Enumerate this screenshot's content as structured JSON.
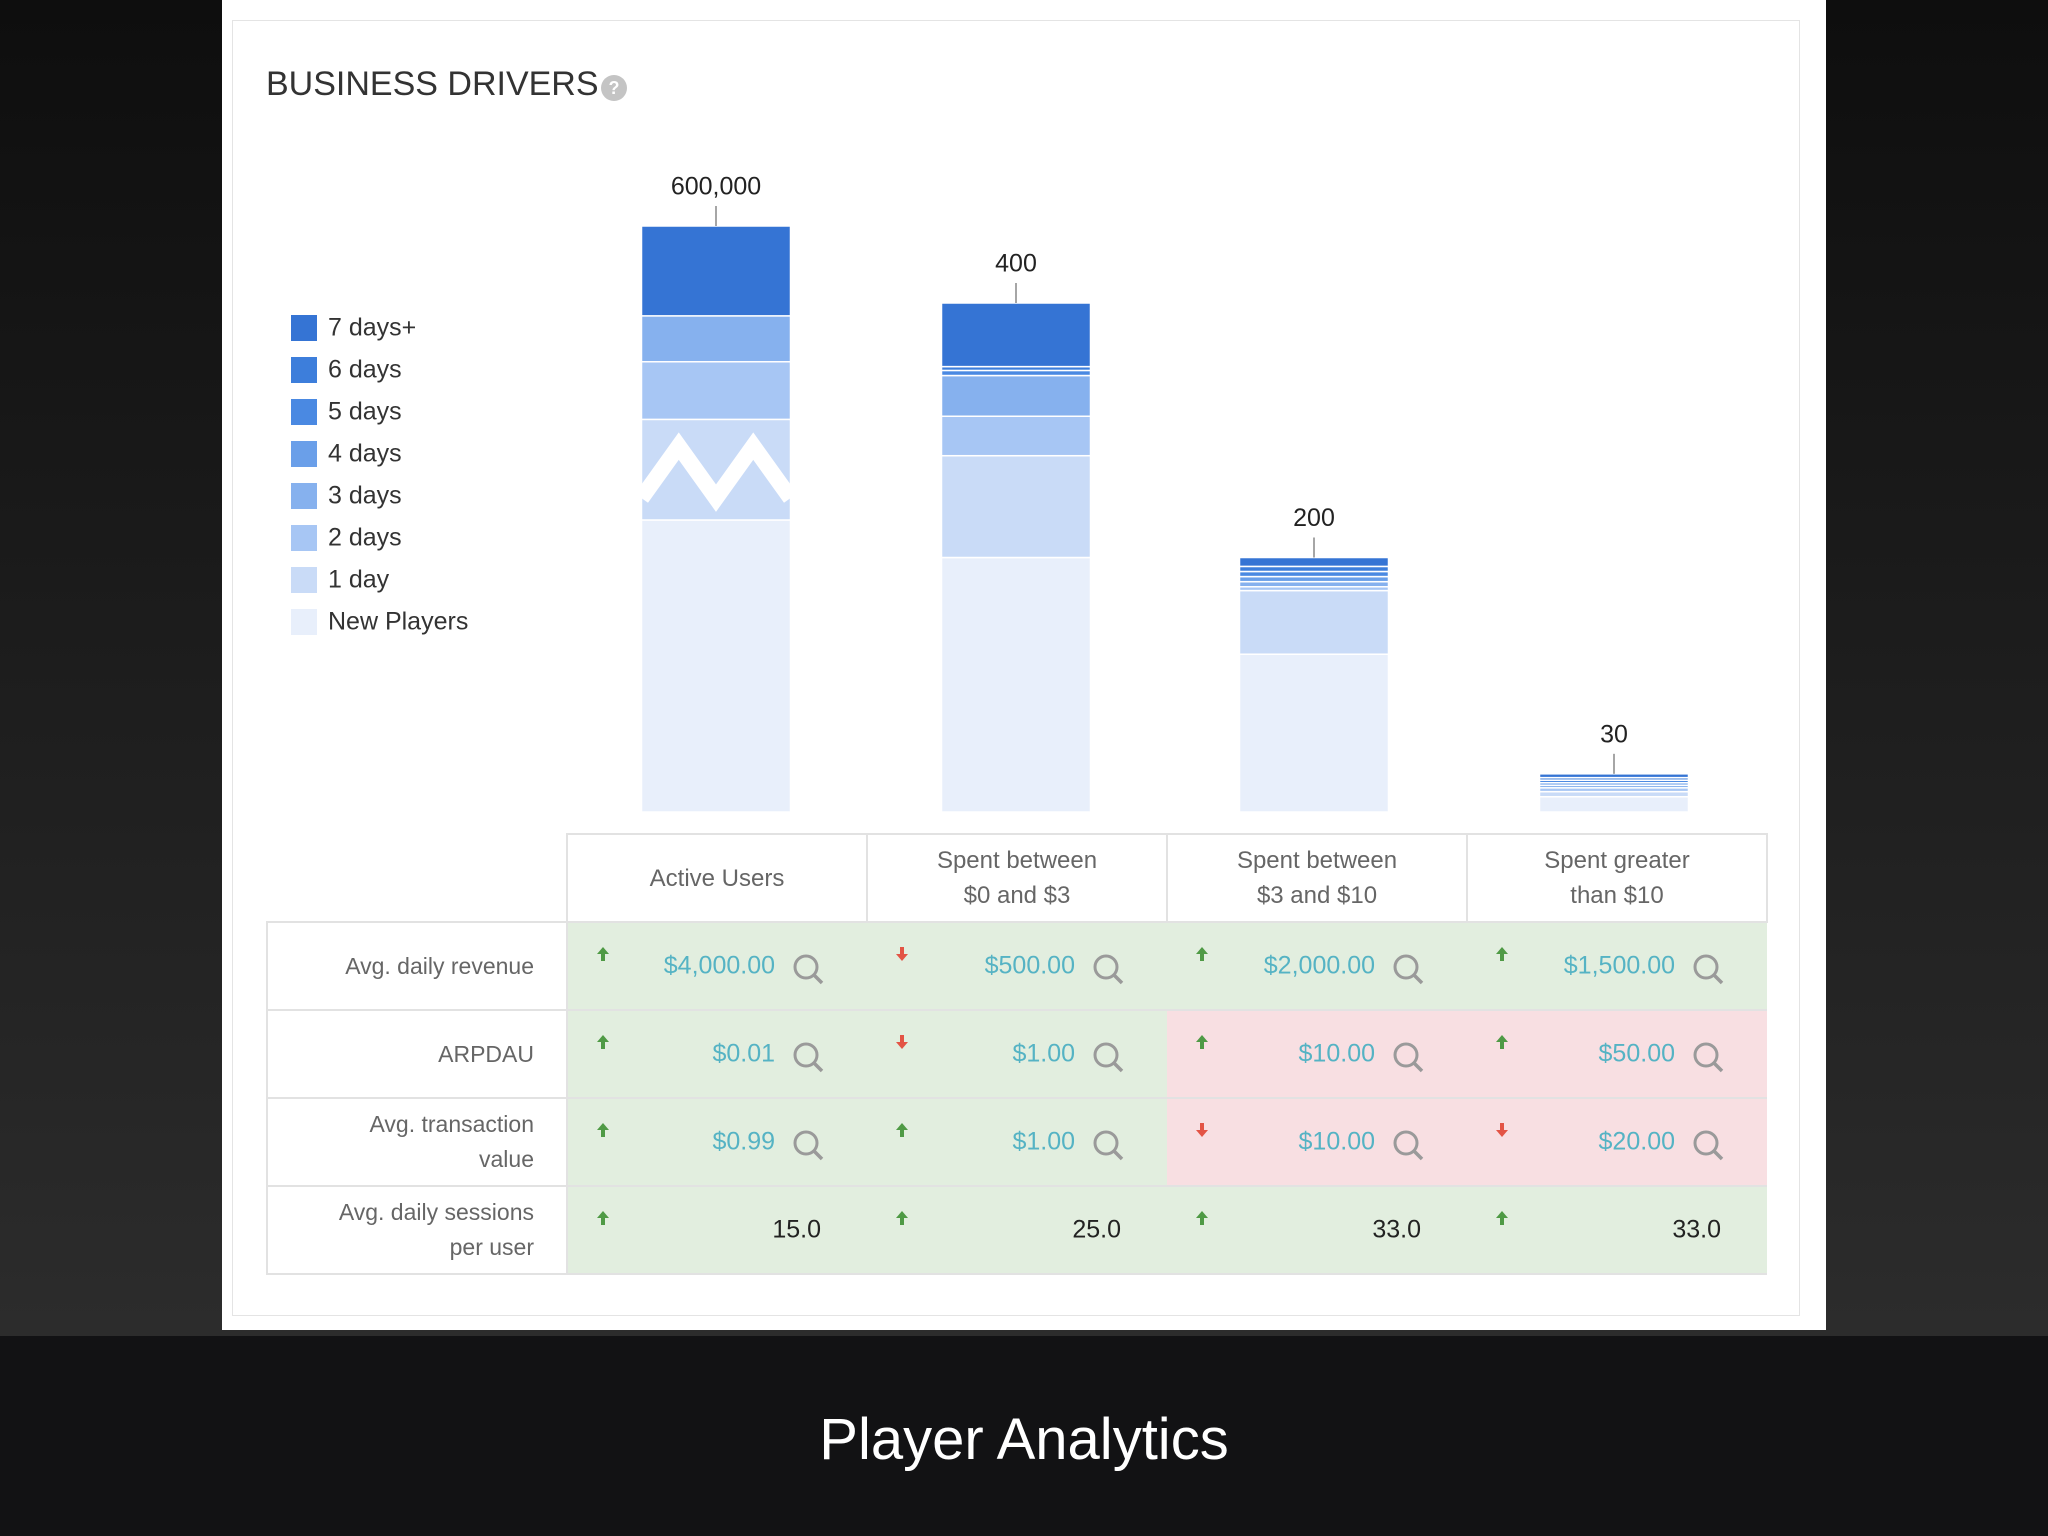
{
  "header": {
    "title": "BUSINESS DRIVERS"
  },
  "chart_data": {
    "type": "stacked_bar",
    "categories": [
      "Active Users",
      "Spent between $0 and $3",
      "Spent between $3 and $10",
      "Spent greater than $10"
    ],
    "total_labels": [
      "600,000",
      "400",
      "200",
      "30"
    ],
    "legend": "left",
    "series": [
      {
        "name": "7 days+",
        "color": "#3574d4",
        "values": [
          92000,
          50,
          7,
          3
        ]
      },
      {
        "name": "6 days",
        "color": "#3d7edb",
        "values": [
          0,
          3,
          4,
          2
        ]
      },
      {
        "name": "5 days",
        "color": "#4a89e2",
        "values": [
          0,
          4,
          4,
          2
        ]
      },
      {
        "name": "4 days",
        "color": "#6a9fe9",
        "values": [
          0,
          0,
          4,
          2
        ]
      },
      {
        "name": "3 days",
        "color": "#86b1ee",
        "values": [
          47000,
          32,
          4,
          2
        ]
      },
      {
        "name": "2 days",
        "color": "#a7c6f4",
        "values": [
          59000,
          31,
          3,
          3
        ]
      },
      {
        "name": "1 day",
        "color": "#c9dbf7",
        "values": [
          103000,
          80,
          50,
          4
        ]
      },
      {
        "name": "New Players",
        "color": "#e8effb",
        "values": [
          299000,
          200,
          124,
          12
        ]
      }
    ]
  },
  "table": {
    "rows": [
      {
        "label": "Avg. daily revenue",
        "linked": true,
        "cells": [
          {
            "value": "$4,000.00",
            "trend": "up",
            "status": "good"
          },
          {
            "value": "$500.00",
            "trend": "down",
            "status": "good"
          },
          {
            "value": "$2,000.00",
            "trend": "up",
            "status": "good"
          },
          {
            "value": "$1,500.00",
            "trend": "up",
            "status": "good"
          }
        ]
      },
      {
        "label": "ARPDAU",
        "linked": true,
        "cells": [
          {
            "value": "$0.01",
            "trend": "up",
            "status": "good"
          },
          {
            "value": "$1.00",
            "trend": "down",
            "status": "good"
          },
          {
            "value": "$10.00",
            "trend": "up",
            "status": "bad"
          },
          {
            "value": "$50.00",
            "trend": "up",
            "status": "bad"
          }
        ]
      },
      {
        "label": "Avg. transaction value",
        "linked": true,
        "cells": [
          {
            "value": "$0.99",
            "trend": "up",
            "status": "good"
          },
          {
            "value": "$1.00",
            "trend": "up",
            "status": "good"
          },
          {
            "value": "$10.00",
            "trend": "down",
            "status": "bad"
          },
          {
            "value": "$20.00",
            "trend": "down",
            "status": "bad"
          }
        ]
      },
      {
        "label": "Avg. daily sessions per user",
        "linked": false,
        "cells": [
          {
            "value": "15.0",
            "trend": "up",
            "status": "good"
          },
          {
            "value": "25.0",
            "trend": "up",
            "status": "good"
          },
          {
            "value": "33.0",
            "trend": "up",
            "status": "good"
          },
          {
            "value": "33.0",
            "trend": "up",
            "status": "good"
          }
        ]
      }
    ]
  },
  "caption": "Player Analytics"
}
